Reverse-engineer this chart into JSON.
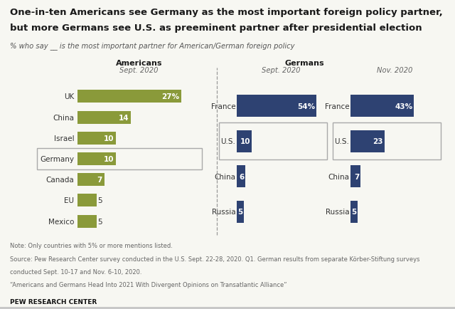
{
  "title_line1": "One-in-ten Americans see Germany as the most important foreign policy partner,",
  "title_line2": "but more Germans see U.S. as preeminent partner after presidential election",
  "subtitle": "% who say __ is the most important partner for American/German foreign policy",
  "americans_label": "Americans",
  "americans_date": "Sept. 2020",
  "germans_label": "Germans",
  "german_sept_date": "Sept. 2020",
  "german_nov_date": "Nov. 2020",
  "americans": {
    "categories": [
      "UK",
      "China",
      "Israel",
      "Germany",
      "Canada",
      "EU",
      "Mexico"
    ],
    "values": [
      27,
      14,
      10,
      10,
      7,
      5,
      5
    ],
    "germany_index": 3,
    "color": "#8a9a3a"
  },
  "german_sept": {
    "categories": [
      "France",
      "U.S.",
      "China",
      "Russia"
    ],
    "values": [
      54,
      10,
      6,
      5
    ],
    "us_index": 1,
    "color": "#2e4272"
  },
  "german_nov": {
    "categories": [
      "France",
      "U.S.",
      "China",
      "Russia"
    ],
    "values": [
      43,
      23,
      7,
      5
    ],
    "us_index": 1,
    "color": "#2e4272"
  },
  "note_line1": "Note: Only countries with 5% or more mentions listed.",
  "note_line2": "Source: Pew Research Center survey conducted in the U.S. Sept. 22-28, 2020. Q1. German results from separate Körber-Stiftung surveys",
  "note_line3": "conducted Sept. 10-17 and Nov. 6-10, 2020.",
  "note_line4": "“Americans and Germans Head Into 2021 With Divergent Opinions on Transatlantic Alliance”",
  "pew_label": "PEW RESEARCH CENTER",
  "bg_color": "#f7f7f2",
  "text_color": "#333333",
  "note_color": "#666666",
  "divider_color": "#999999",
  "box_color": "#aaaaaa"
}
